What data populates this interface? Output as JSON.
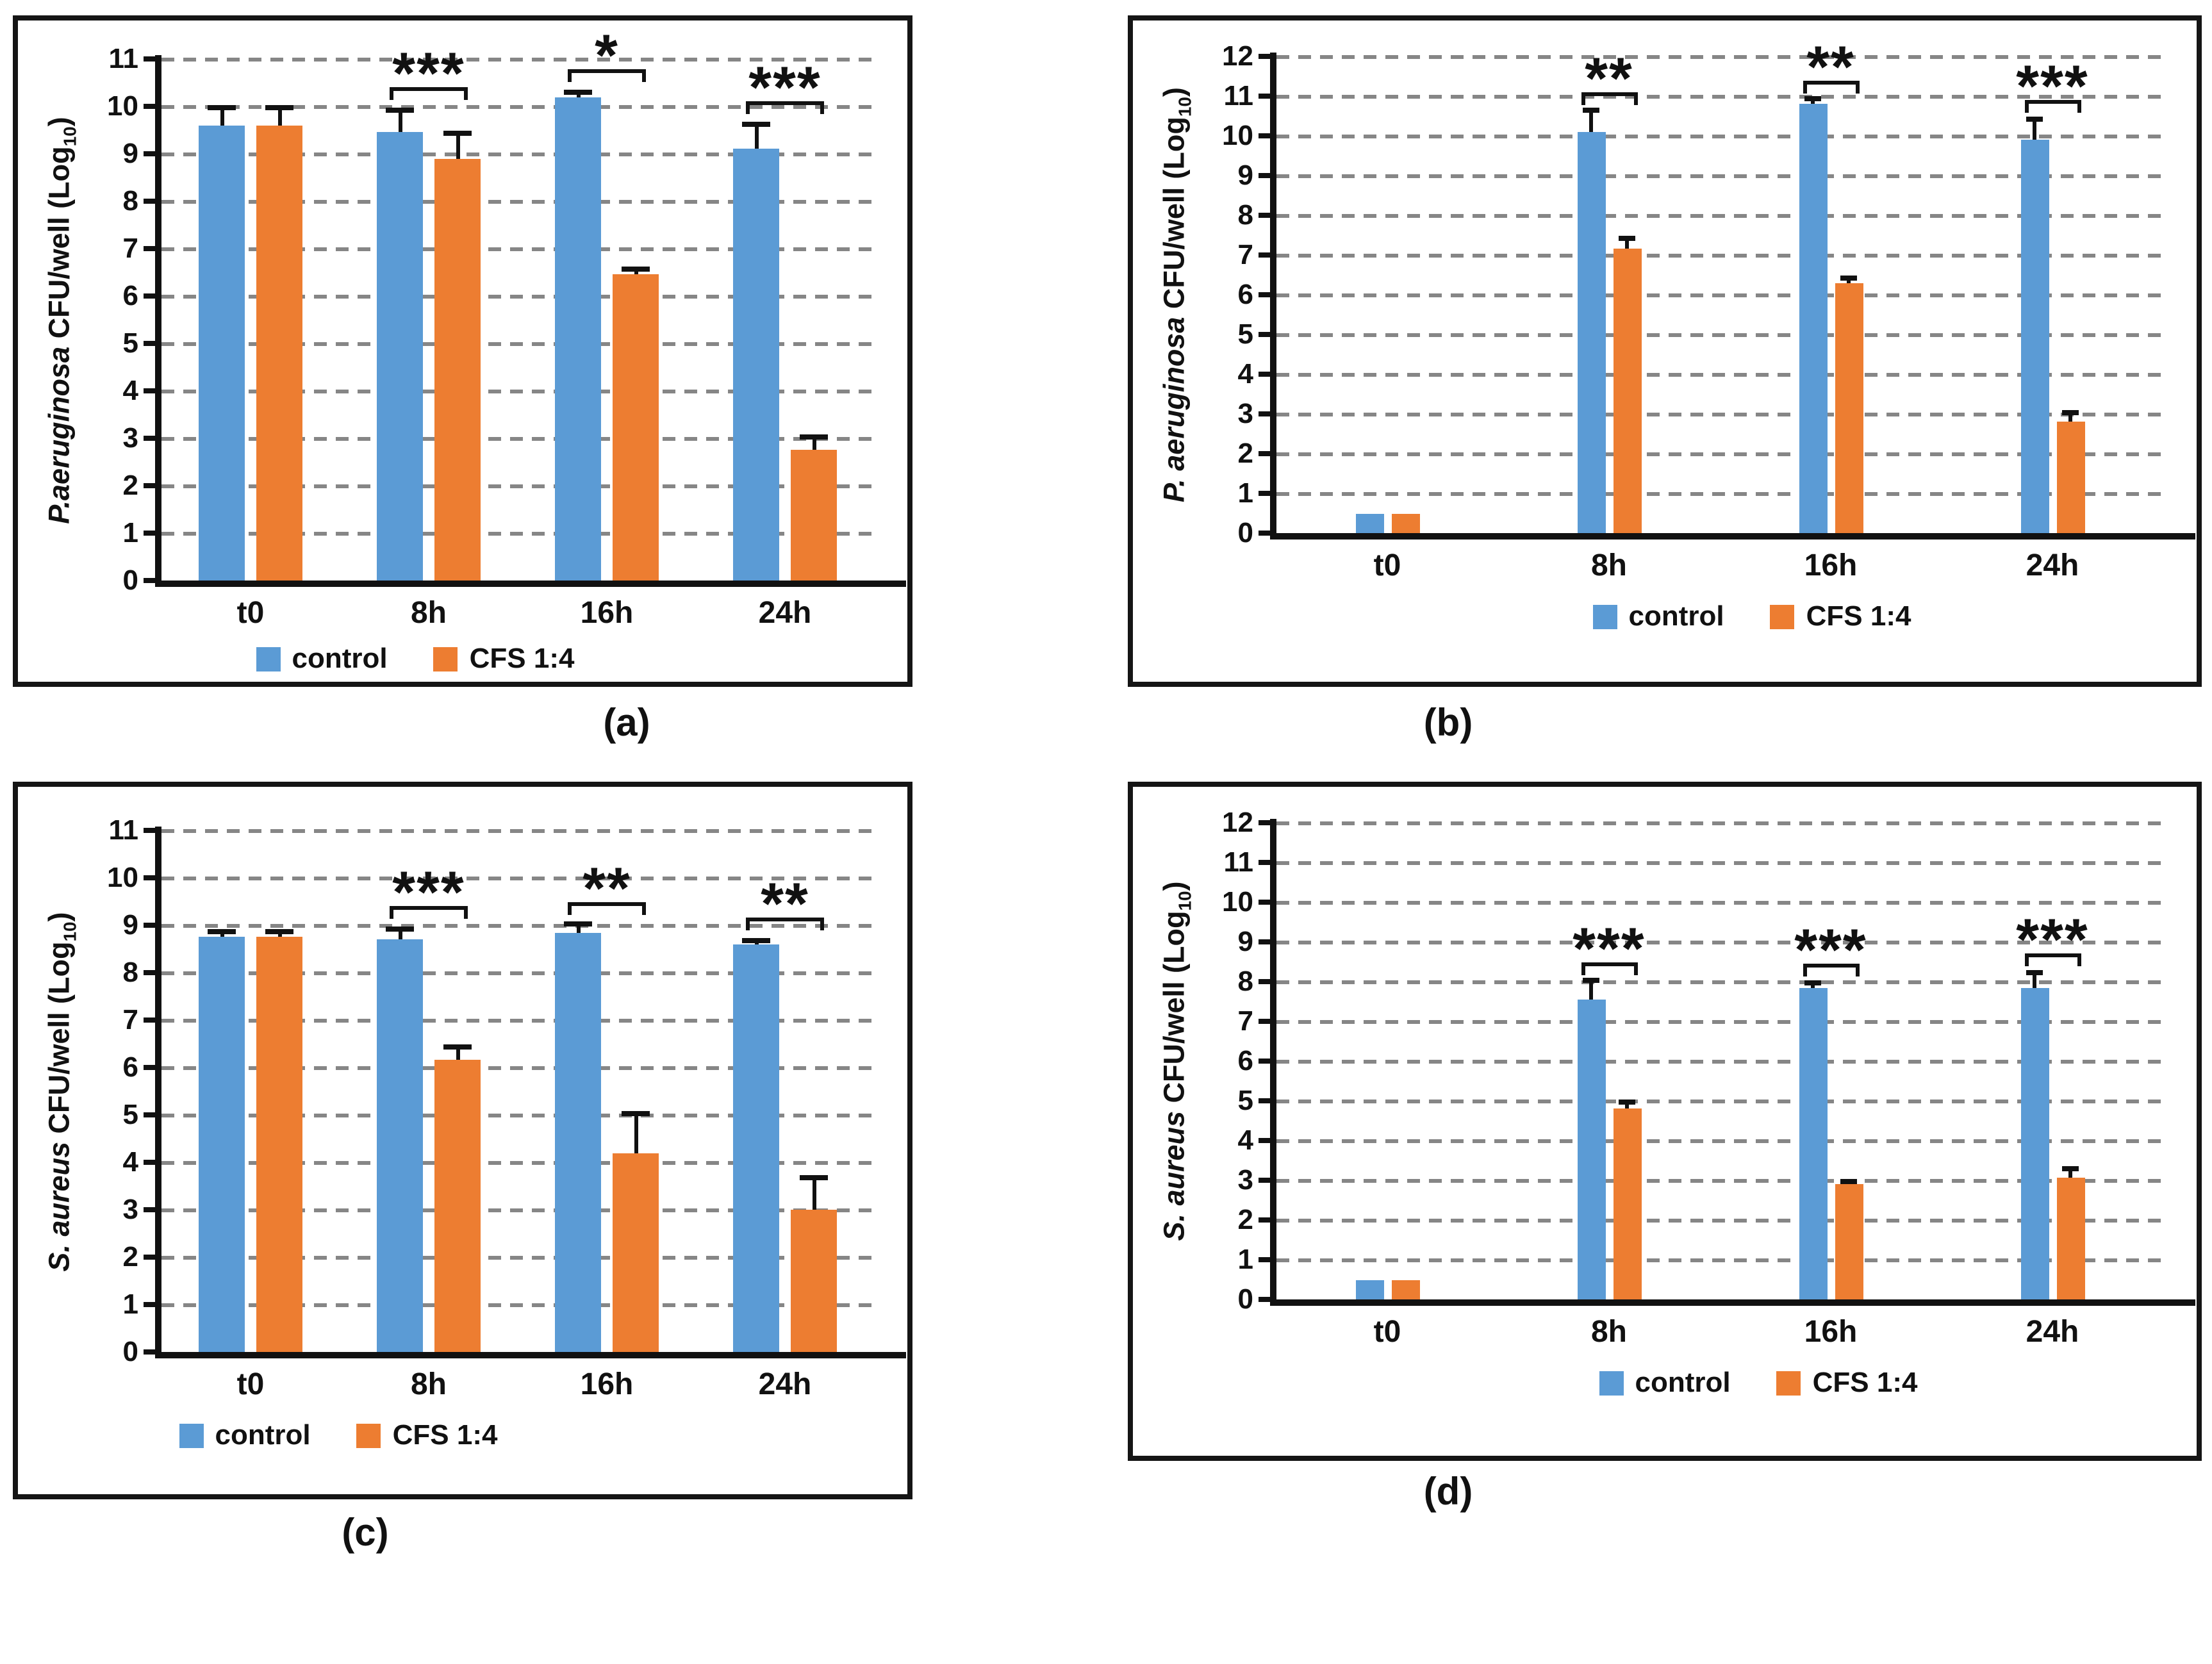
{
  "figure": {
    "legend_labels": [
      "control",
      "CFS 1:4"
    ],
    "colors": {
      "control": "#5B9BD5",
      "cfs": "#ED7D31",
      "gridline": "#868686",
      "axis": "#111111",
      "text": "#111111"
    }
  },
  "chart_data": [
    {
      "id": "a",
      "type": "bar",
      "caption": "(a)",
      "ylabel_species": "P.aeruginosa",
      "ylabel_mid": " CFU/well (Log",
      "ylabel_sub": "10",
      "ylabel_suffix": ")",
      "ylim": [
        0,
        11
      ],
      "ytick_step": 1,
      "grid": "dashed-horizontal",
      "legend_position": "bottom",
      "categories": [
        "t0",
        "8h",
        "16h",
        "24h"
      ],
      "series": [
        {
          "name": "control",
          "color": "#5B9BD5",
          "values": [
            9.6,
            9.45,
            10.2,
            9.1
          ],
          "errors": [
            0.35,
            0.45,
            0.08,
            0.5
          ]
        },
        {
          "name": "CFS 1:4",
          "color": "#ED7D31",
          "values": [
            9.6,
            8.9,
            6.45,
            2.75
          ],
          "errors": [
            0.35,
            0.5,
            0.1,
            0.25
          ]
        }
      ],
      "significance": [
        {
          "category": "8h",
          "label": "***"
        },
        {
          "category": "16h",
          "label": "*"
        },
        {
          "category": "24h",
          "label": "***"
        }
      ]
    },
    {
      "id": "b",
      "type": "bar",
      "caption": "(b)",
      "ylabel_species": "P. aeruginosa",
      "ylabel_mid": " CFU/well (Log",
      "ylabel_sub": "10",
      "ylabel_suffix": ")",
      "ylim": [
        0,
        12
      ],
      "ytick_step": 1,
      "grid": "dashed-horizontal",
      "legend_position": "bottom",
      "categories": [
        "t0",
        "8h",
        "16h",
        "24h"
      ],
      "series": [
        {
          "name": "control",
          "color": "#5B9BD5",
          "values": [
            0.5,
            10.1,
            10.8,
            9.9
          ],
          "errors": [
            0,
            0.5,
            0.1,
            0.5
          ]
        },
        {
          "name": "CFS 1:4",
          "color": "#ED7D31",
          "values": [
            0.5,
            7.15,
            6.3,
            2.8
          ],
          "errors": [
            0,
            0.25,
            0.08,
            0.2
          ]
        }
      ],
      "significance": [
        {
          "category": "8h",
          "label": "**"
        },
        {
          "category": "16h",
          "label": "**"
        },
        {
          "category": "24h",
          "label": "***"
        }
      ]
    },
    {
      "id": "c",
      "type": "bar",
      "caption": "(c)",
      "ylabel_species": "S. aureus",
      "ylabel_mid": " CFU/well (Log",
      "ylabel_sub": "10",
      "ylabel_suffix": ")",
      "ylim": [
        0,
        11
      ],
      "ytick_step": 1,
      "grid": "dashed-horizontal",
      "legend_position": "bottom",
      "categories": [
        "t0",
        "8h",
        "16h",
        "24h"
      ],
      "series": [
        {
          "name": "control",
          "color": "#5B9BD5",
          "values": [
            8.75,
            8.7,
            8.85,
            8.6
          ],
          "errors": [
            0.08,
            0.2,
            0.15,
            0.06
          ]
        },
        {
          "name": "CFS 1:4",
          "color": "#ED7D31",
          "values": [
            8.75,
            6.15,
            4.2,
            3.0
          ],
          "errors": [
            0.08,
            0.25,
            0.8,
            0.65
          ]
        }
      ],
      "significance": [
        {
          "category": "8h",
          "label": "***"
        },
        {
          "category": "16h",
          "label": "**"
        },
        {
          "category": "24h",
          "label": "**"
        }
      ]
    },
    {
      "id": "d",
      "type": "bar",
      "caption": "(d)",
      "ylabel_species": "S. aureus",
      "ylabel_mid": " CFU/well (Log",
      "ylabel_sub": "10",
      "ylabel_suffix": ")",
      "ylim": [
        0,
        12
      ],
      "ytick_step": 1,
      "grid": "dashed-horizontal",
      "legend_position": "bottom",
      "categories": [
        "t0",
        "8h",
        "16h",
        "24h"
      ],
      "series": [
        {
          "name": "control",
          "color": "#5B9BD5",
          "values": [
            0.5,
            7.55,
            7.85,
            7.85
          ],
          "errors": [
            0,
            0.45,
            0.1,
            0.35
          ]
        },
        {
          "name": "CFS 1:4",
          "color": "#ED7D31",
          "values": [
            0.5,
            4.8,
            2.9,
            3.05
          ],
          "errors": [
            0,
            0.15,
            0.05,
            0.2
          ]
        }
      ],
      "significance": [
        {
          "category": "8h",
          "label": "***"
        },
        {
          "category": "16h",
          "label": "***"
        },
        {
          "category": "24h",
          "label": "***"
        }
      ]
    }
  ]
}
